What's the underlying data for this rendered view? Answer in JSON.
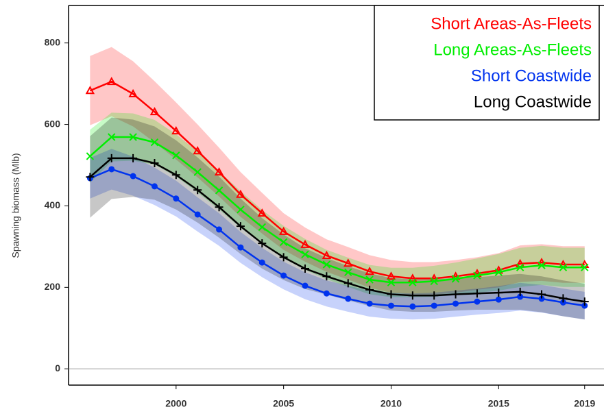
{
  "chart_data": {
    "type": "line",
    "y_label": "Spawning biomass (Mlb)",
    "x": [
      1996,
      1997,
      1998,
      1999,
      2000,
      2001,
      2002,
      2003,
      2004,
      2005,
      2006,
      2007,
      2008,
      2009,
      2010,
      2011,
      2012,
      2013,
      2014,
      2015,
      2016,
      2017,
      2018,
      2019
    ],
    "xlim": [
      1995,
      2019.9
    ],
    "xticks": [
      2000,
      2005,
      2010,
      2015,
      2019
    ],
    "ylim": [
      -40,
      892
    ],
    "yticks": [
      0,
      200,
      400,
      600,
      800
    ],
    "legend": "top-right",
    "series": [
      {
        "name": "Short Areas-As-Fleets",
        "color": "#ff0000",
        "marker": "triangle",
        "values": [
          683,
          705,
          675,
          631,
          584,
          535,
          483,
          428,
          382,
          337,
          305,
          278,
          259,
          239,
          227,
          222,
          222,
          227,
          234,
          242,
          258,
          261,
          256,
          256
        ],
        "upper": [
          768,
          790,
          755,
          706,
          654,
          600,
          543,
          483,
          432,
          382,
          347,
          318,
          299,
          279,
          267,
          262,
          262,
          267,
          274,
          284,
          303,
          306,
          301,
          301
        ],
        "lower": [
          598,
          620,
          595,
          556,
          514,
          470,
          423,
          373,
          332,
          292,
          263,
          238,
          219,
          199,
          187,
          182,
          182,
          187,
          194,
          200,
          213,
          216,
          211,
          211
        ]
      },
      {
        "name": "Long Areas-As-Fleets",
        "color": "#00ee00",
        "marker": "x",
        "values": [
          522,
          569,
          569,
          556,
          524,
          483,
          438,
          391,
          348,
          311,
          281,
          256,
          237,
          219,
          212,
          212,
          215,
          221,
          229,
          237,
          249,
          254,
          249,
          249
        ],
        "upper": [
          587,
          629,
          627,
          611,
          576,
          533,
          485,
          436,
          390,
          351,
          319,
          292,
          273,
          255,
          248,
          248,
          253,
          261,
          271,
          282,
          297,
          302,
          297,
          297
        ],
        "lower": [
          457,
          509,
          511,
          501,
          472,
          433,
          391,
          346,
          306,
          271,
          243,
          220,
          201,
          183,
          176,
          176,
          177,
          181,
          187,
          192,
          201,
          206,
          201,
          201
        ]
      },
      {
        "name": "Short Coastwide",
        "color": "#0033ee",
        "marker": "circle",
        "values": [
          468,
          490,
          473,
          448,
          418,
          379,
          342,
          298,
          261,
          229,
          204,
          185,
          172,
          160,
          155,
          153,
          155,
          160,
          165,
          170,
          177,
          172,
          163,
          155
        ],
        "upper": [
          518,
          540,
          521,
          494,
          462,
          421,
          382,
          336,
          297,
          263,
          237,
          217,
          204,
          192,
          187,
          185,
          187,
          192,
          197,
          203,
          211,
          206,
          197,
          189
        ],
        "lower": [
          418,
          440,
          425,
          402,
          374,
          337,
          302,
          260,
          225,
          195,
          171,
          153,
          140,
          128,
          123,
          121,
          123,
          128,
          133,
          137,
          143,
          138,
          129,
          121
        ]
      },
      {
        "name": "Long Coastwide",
        "color": "#000000",
        "marker": "plus",
        "values": [
          471,
          517,
          517,
          505,
          476,
          439,
          397,
          350,
          308,
          274,
          246,
          227,
          210,
          194,
          183,
          180,
          180,
          183,
          185,
          187,
          189,
          183,
          173,
          165
        ],
        "upper": [
          571,
          617,
          612,
          595,
          561,
          519,
          472,
          418,
          370,
          330,
          296,
          272,
          252,
          234,
          223,
          220,
          220,
          223,
          225,
          229,
          233,
          227,
          217,
          209
        ],
        "lower": [
          371,
          417,
          422,
          415,
          391,
          359,
          322,
          282,
          246,
          218,
          196,
          182,
          168,
          154,
          143,
          140,
          140,
          143,
          145,
          145,
          145,
          139,
          129,
          121
        ]
      }
    ]
  }
}
